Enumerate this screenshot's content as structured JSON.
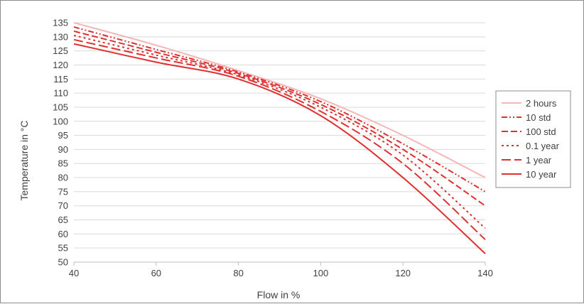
{
  "chart_data": {
    "type": "line",
    "title": "",
    "xlabel": "Flow in %",
    "ylabel": "Temperature in °C",
    "xlim": [
      40,
      140
    ],
    "ylim": [
      50,
      135
    ],
    "xticks": [
      40,
      60,
      80,
      100,
      120,
      140
    ],
    "yticks": [
      50,
      55,
      60,
      65,
      70,
      75,
      80,
      85,
      90,
      95,
      100,
      105,
      110,
      115,
      120,
      125,
      130,
      135
    ],
    "grid": "horizontal",
    "legend_position": "right",
    "x": [
      40,
      60,
      80,
      100,
      120,
      140
    ],
    "series": [
      {
        "name": "2 hours",
        "values": [
          135,
          127,
          118,
          108,
          95,
          80
        ],
        "color": "#f4b6b6",
        "dash": "solid"
      },
      {
        "name": "10 std",
        "values": [
          133.5,
          125.5,
          117.5,
          107,
          92,
          75
        ],
        "color": "#e03030",
        "dash": "dashdotdot"
      },
      {
        "name": "100 std",
        "values": [
          132,
          124.5,
          117,
          106,
          90,
          70
        ],
        "color": "#e03030",
        "dash": "dash"
      },
      {
        "name": "0.1 year",
        "values": [
          130.5,
          123.5,
          116.5,
          105,
          88,
          62
        ],
        "color": "#e03030",
        "dash": "dot"
      },
      {
        "name": "1 year",
        "values": [
          129,
          122.5,
          116,
          103.5,
          85,
          58
        ],
        "color": "#e03030",
        "dash": "longdash"
      },
      {
        "name": "10 year",
        "values": [
          127.5,
          121,
          115,
          102,
          80,
          53
        ],
        "color": "#e03030",
        "dash": "solid"
      }
    ]
  }
}
